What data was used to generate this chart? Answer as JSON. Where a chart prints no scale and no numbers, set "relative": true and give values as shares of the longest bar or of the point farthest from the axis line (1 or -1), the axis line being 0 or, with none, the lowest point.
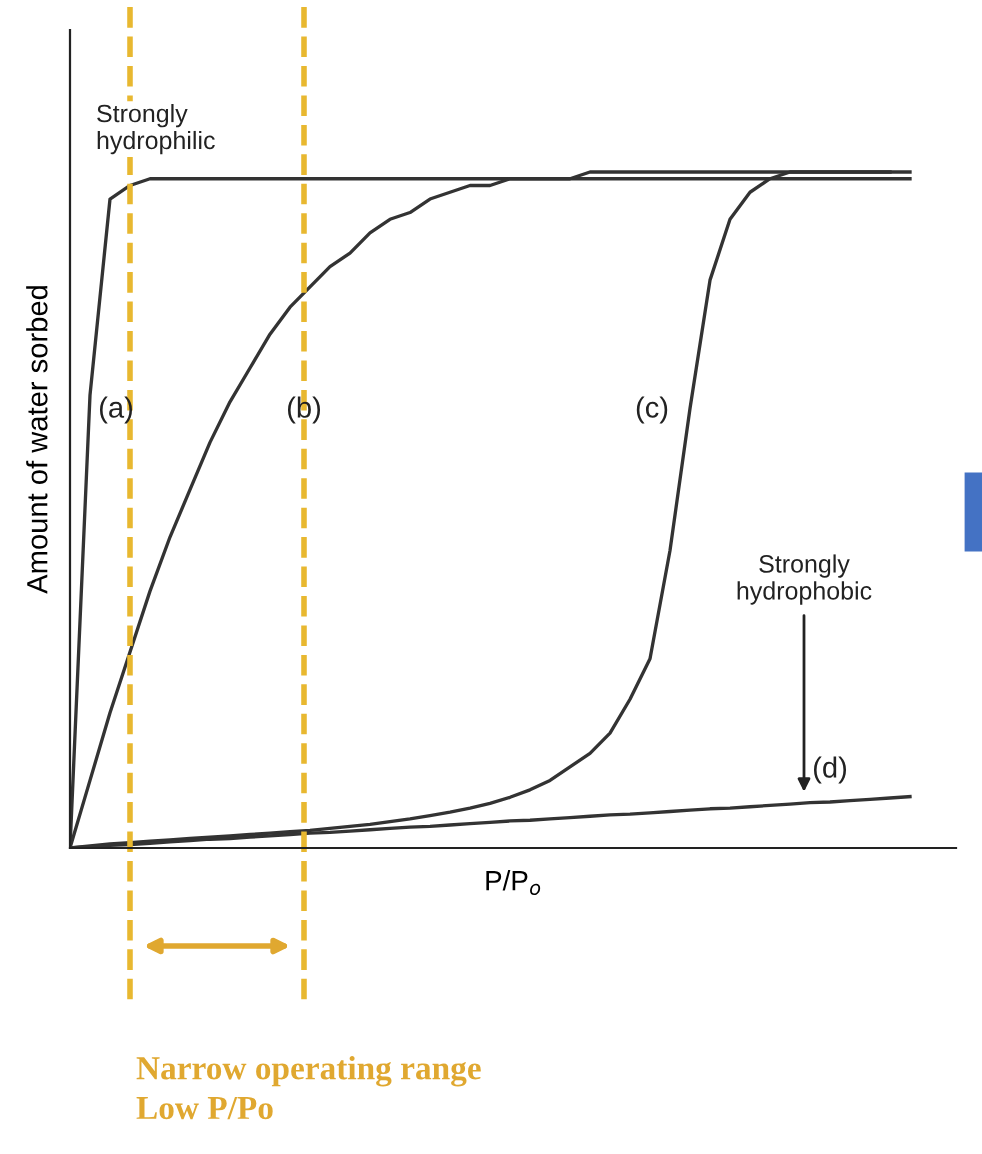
{
  "chart_data": {
    "type": "line",
    "relative": true,
    "xlabel": "P/P$_{o}$",
    "ylabel": "Amount of water sorbed",
    "tick_labels": false,
    "grid": false,
    "legend": false,
    "marker": "none",
    "line_style": "solid",
    "categories": [
      null,
      null,
      null,
      null,
      null,
      null,
      null,
      null,
      null,
      null,
      null,
      null,
      null,
      null,
      null,
      null,
      null,
      null,
      null,
      null,
      null,
      null,
      null,
      null,
      null,
      null,
      null,
      null,
      null,
      null,
      null,
      null,
      null,
      null,
      null,
      null,
      null,
      null,
      null,
      null,
      null,
      null,
      null
    ],
    "series": [
      {
        "name": "(a)",
        "color": "#333333",
        "values": [
          0,
          0.67,
          0.96,
          0.98,
          0.99,
          0.99,
          0.99,
          0.99,
          0.99,
          0.99,
          0.99,
          0.99,
          0.99,
          0.99,
          0.99,
          0.99,
          0.99,
          0.99,
          0.99,
          0.99,
          0.99,
          0.99,
          0.99,
          0.99,
          0.99,
          0.99,
          1.0,
          1.0,
          1.0,
          1.0,
          1.0,
          1.0,
          1.0,
          1.0,
          1.0,
          1.0,
          1.0,
          1.0,
          1.0,
          1.0,
          1.0,
          1.0,
          1.0
        ]
      },
      {
        "name": "(b)",
        "color": "#333333",
        "values": [
          0,
          0.1,
          0.2,
          0.29,
          0.38,
          0.46,
          0.53,
          0.6,
          0.66,
          0.71,
          0.76,
          0.8,
          0.83,
          0.86,
          0.88,
          0.91,
          0.93,
          0.94,
          0.96,
          0.97,
          0.98,
          0.98,
          0.99,
          0.99,
          0.99,
          0.99,
          0.99,
          0.99,
          0.99,
          0.99,
          0.99,
          0.99,
          0.99,
          0.99,
          0.99,
          0.99,
          1.0,
          1.0,
          1.0,
          1.0,
          1.0,
          1.0,
          null
        ]
      },
      {
        "name": "(c)",
        "color": "#333333",
        "values": [
          0,
          0.003,
          0.006,
          0.008,
          0.01,
          0.012,
          0.014,
          0.016,
          0.018,
          0.02,
          0.022,
          0.024,
          0.026,
          0.029,
          0.032,
          0.035,
          0.039,
          0.043,
          0.048,
          0.053,
          0.059,
          0.066,
          0.075,
          0.086,
          0.1,
          0.12,
          0.14,
          0.17,
          0.22,
          0.28,
          0.44,
          0.65,
          0.84,
          0.93,
          0.97,
          0.99,
          0.99,
          0.99,
          0.99,
          0.99,
          0.99,
          0.99,
          0.99
        ]
      },
      {
        "name": "(d)",
        "color": "#333333",
        "values": [
          0,
          0.002,
          0.004,
          0.005,
          0.007,
          0.009,
          0.011,
          0.013,
          0.014,
          0.016,
          0.018,
          0.02,
          0.022,
          0.023,
          0.025,
          0.027,
          0.029,
          0.031,
          0.032,
          0.034,
          0.036,
          0.038,
          0.04,
          0.041,
          0.043,
          0.045,
          0.047,
          0.049,
          0.05,
          0.052,
          0.054,
          0.056,
          0.058,
          0.059,
          0.061,
          0.063,
          0.065,
          0.067,
          0.068,
          0.07,
          0.072,
          0.074,
          0.076
        ]
      }
    ],
    "annotations": [
      "Strongly\nhydrophilic",
      "Strongly\nhydrophobic",
      "Narrow operating range\nLow P/Po"
    ]
  }
}
